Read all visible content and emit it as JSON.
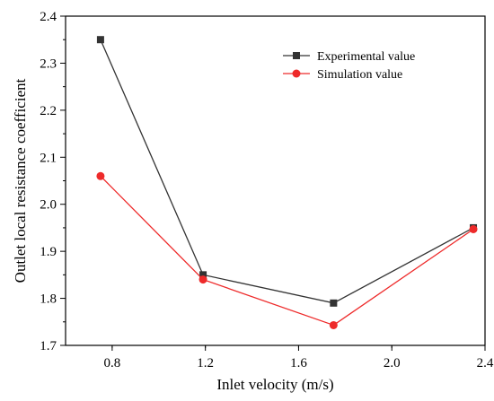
{
  "chart_data": {
    "type": "line",
    "title": "",
    "xlabel": "Inlet velocity (m/s)",
    "ylabel": "Outlet local resistance coefficient",
    "xlim": [
      0.6,
      2.4
    ],
    "ylim": [
      1.7,
      2.4
    ],
    "xticks": [
      0.8,
      1.2,
      1.6,
      2.0,
      2.4
    ],
    "xtick_labels": [
      "0.8",
      "1.2",
      "1.6",
      "2.0",
      "2.4"
    ],
    "yticks": [
      1.7,
      1.8,
      1.9,
      2.0,
      2.1,
      2.2,
      2.3,
      2.4
    ],
    "ytick_labels": [
      "1.7",
      "1.8",
      "1.9",
      "2.0",
      "2.1",
      "2.2",
      "2.3",
      "2.4"
    ],
    "grid": false,
    "legend_position": "top-right",
    "series": [
      {
        "name": "Experimental value",
        "color": "#333333",
        "marker": "square",
        "x": [
          0.75,
          1.19,
          1.75,
          2.35
        ],
        "y": [
          2.35,
          1.85,
          1.79,
          1.95
        ]
      },
      {
        "name": "Simulation value",
        "color": "#ee2a2a",
        "marker": "circle",
        "x": [
          0.75,
          1.19,
          1.75,
          2.35
        ],
        "y": [
          2.06,
          1.84,
          1.743,
          1.947
        ]
      }
    ]
  }
}
